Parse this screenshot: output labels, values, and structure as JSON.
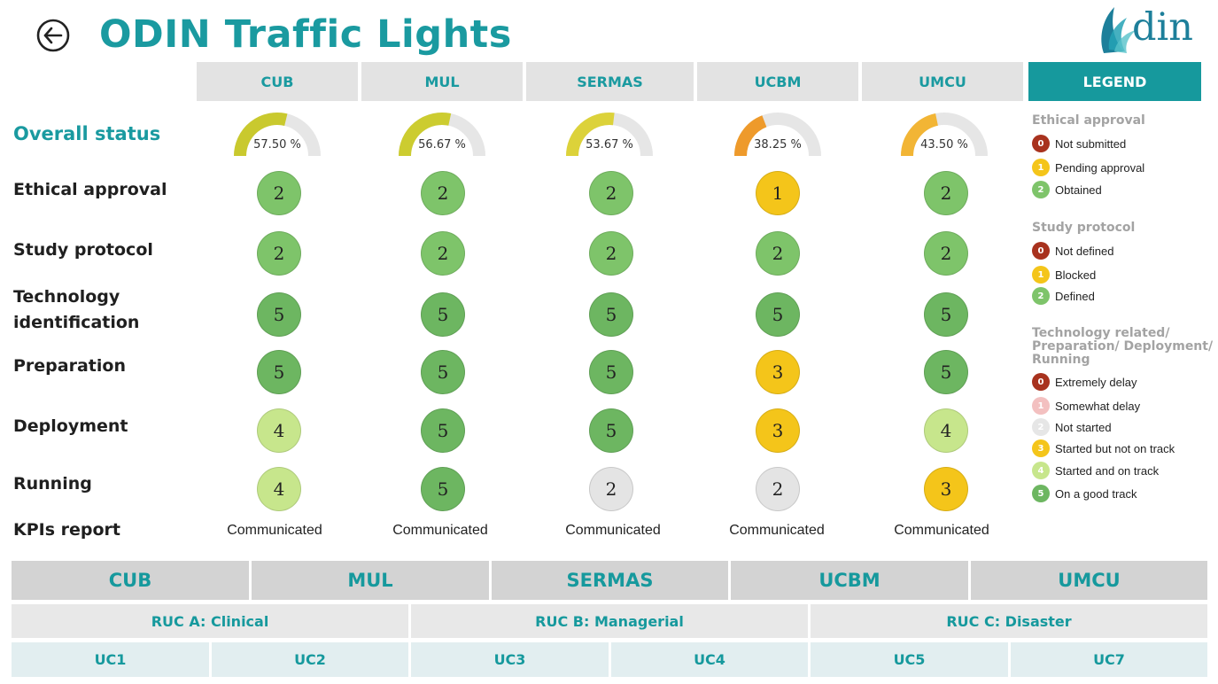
{
  "header": {
    "title": "ODIN Traffic Lights",
    "back_icon": "arrow-left-circle-icon",
    "logo_text": "din",
    "logo_icon": "odin-leaf-logo-icon"
  },
  "sites": [
    "CUB",
    "MUL",
    "SERMAS",
    "UCBM",
    "UMCU"
  ],
  "legend_header": "LEGEND",
  "rows": {
    "overall": "Overall status",
    "ethical": "Ethical approval",
    "protocol": "Study protocol",
    "tech_line1": "Technology",
    "tech_line2": "identification",
    "preparation": "Preparation",
    "deployment": "Deployment",
    "running": "Running",
    "kpis": "KPIs report"
  },
  "overall_status": [
    {
      "label": "57.50 %",
      "value": 57.5,
      "color": "#c9c92e"
    },
    {
      "label": "56.67 %",
      "value": 56.67,
      "color": "#cccc30"
    },
    {
      "label": "53.67 %",
      "value": 53.67,
      "color": "#dcd23a"
    },
    {
      "label": "38.25 %",
      "value": 38.25,
      "color": "#ee9a2b"
    },
    {
      "label": "43.50 %",
      "value": 43.5,
      "color": "#f2b535"
    }
  ],
  "status_colors": {
    "0": "#a8321e",
    "1": "#f4c51a",
    "2_grey": "#e4e4e4",
    "2_green": "#7ec46a",
    "3": "#f4c51a",
    "4": "#c7e68c",
    "5": "#6db661"
  },
  "grid": {
    "ethical": [
      {
        "v": "2",
        "c": "#7ec46a"
      },
      {
        "v": "2",
        "c": "#7ec46a"
      },
      {
        "v": "2",
        "c": "#7ec46a"
      },
      {
        "v": "1",
        "c": "#f4c51a"
      },
      {
        "v": "2",
        "c": "#7ec46a"
      }
    ],
    "protocol": [
      {
        "v": "2",
        "c": "#7ec46a"
      },
      {
        "v": "2",
        "c": "#7ec46a"
      },
      {
        "v": "2",
        "c": "#7ec46a"
      },
      {
        "v": "2",
        "c": "#7ec46a"
      },
      {
        "v": "2",
        "c": "#7ec46a"
      }
    ],
    "technology": [
      {
        "v": "5",
        "c": "#6db661"
      },
      {
        "v": "5",
        "c": "#6db661"
      },
      {
        "v": "5",
        "c": "#6db661"
      },
      {
        "v": "5",
        "c": "#6db661"
      },
      {
        "v": "5",
        "c": "#6db661"
      }
    ],
    "preparation": [
      {
        "v": "5",
        "c": "#6db661"
      },
      {
        "v": "5",
        "c": "#6db661"
      },
      {
        "v": "5",
        "c": "#6db661"
      },
      {
        "v": "3",
        "c": "#f4c51a"
      },
      {
        "v": "5",
        "c": "#6db661"
      }
    ],
    "deployment": [
      {
        "v": "4",
        "c": "#c7e68c"
      },
      {
        "v": "5",
        "c": "#6db661"
      },
      {
        "v": "5",
        "c": "#6db661"
      },
      {
        "v": "3",
        "c": "#f4c51a"
      },
      {
        "v": "4",
        "c": "#c7e68c"
      }
    ],
    "running": [
      {
        "v": "4",
        "c": "#c7e68c"
      },
      {
        "v": "5",
        "c": "#6db661"
      },
      {
        "v": "2",
        "c": "#e4e4e4"
      },
      {
        "v": "2",
        "c": "#e4e4e4"
      },
      {
        "v": "3",
        "c": "#f4c51a"
      }
    ]
  },
  "kpis": [
    "Communicated",
    "Communicated",
    "Communicated",
    "Communicated",
    "Communicated"
  ],
  "legend": {
    "ethical": {
      "title": "Ethical approval",
      "items": [
        {
          "n": "0",
          "label": "Not submitted",
          "color": "#a8321e"
        },
        {
          "n": "1",
          "label": "Pending approval",
          "color": "#f4c51a"
        },
        {
          "n": "2",
          "label": "Obtained",
          "color": "#7ec46a"
        }
      ]
    },
    "protocol": {
      "title": "Study protocol",
      "items": [
        {
          "n": "0",
          "label": "Not defined",
          "color": "#a8321e"
        },
        {
          "n": "1",
          "label": "Blocked",
          "color": "#f4c51a"
        },
        {
          "n": "2",
          "label": "Defined",
          "color": "#7ec46a"
        }
      ]
    },
    "tech": {
      "title_line1": "Technology related/",
      "title_line2": "Preparation/ Deployment/",
      "title_line3": "Running",
      "items": [
        {
          "n": "0",
          "label": "Extremely delay",
          "color": "#a8321e"
        },
        {
          "n": "1",
          "label": "Somewhat delay",
          "color": "#f3c0c0"
        },
        {
          "n": "2",
          "label": "Not started",
          "color": "#e6e6e6"
        },
        {
          "n": "3",
          "label": "Started but not on track",
          "color": "#f4c51a"
        },
        {
          "n": "4",
          "label": "Started and on track",
          "color": "#c7e68c"
        },
        {
          "n": "5",
          "label": "On a good track",
          "color": "#6db661"
        }
      ]
    }
  },
  "bottom_table": {
    "sites": [
      "CUB",
      "MUL",
      "SERMAS",
      "UCBM",
      "UMCU"
    ],
    "rucs": [
      "RUC A: Clinical",
      "RUC B: Managerial",
      "RUC C: Disaster"
    ],
    "ucs": [
      "UC1",
      "UC2",
      "UC3",
      "UC4",
      "UC5",
      "UC7"
    ]
  }
}
